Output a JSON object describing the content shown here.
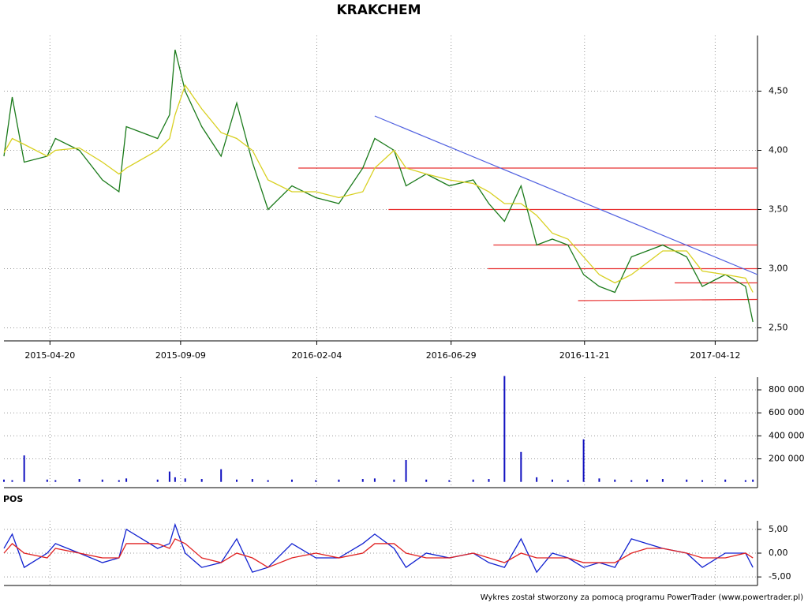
{
  "chart_data": [
    {
      "type": "line",
      "title": "KRAKCHEM",
      "x": [
        "2015-03-01",
        "2015-03-10",
        "2015-03-23",
        "2015-04-17",
        "2015-04-26",
        "2015-05-22",
        "2015-06-16",
        "2015-07-04",
        "2015-07-12",
        "2015-08-15",
        "2015-08-28",
        "2015-09-03",
        "2015-09-14",
        "2015-10-02",
        "2015-10-23",
        "2015-11-09",
        "2015-11-26",
        "2015-12-13",
        "2016-01-08",
        "2016-02-03",
        "2016-02-28",
        "2016-03-25",
        "2016-04-07",
        "2016-04-28",
        "2016-05-11",
        "2016-06-02",
        "2016-06-27",
        "2016-07-23",
        "2016-08-09",
        "2016-08-26",
        "2016-09-13",
        "2016-09-30",
        "2016-10-17",
        "2016-11-03",
        "2016-11-20",
        "2016-12-07",
        "2016-12-24",
        "2017-01-11",
        "2017-01-28",
        "2017-02-14",
        "2017-03-12",
        "2017-03-29",
        "2017-04-23",
        "2017-05-15",
        "2017-05-23"
      ],
      "series": [
        {
          "color": "#1a7a1a",
          "values": [
            3.95,
            4.45,
            3.9,
            3.95,
            4.1,
            4.0,
            3.75,
            3.65,
            4.2,
            4.1,
            4.3,
            4.85,
            4.5,
            4.2,
            3.95,
            4.4,
            3.9,
            3.5,
            3.7,
            3.6,
            3.55,
            3.85,
            4.1,
            4.0,
            3.7,
            3.8,
            3.7,
            3.75,
            3.55,
            3.4,
            3.7,
            3.2,
            3.25,
            3.2,
            2.95,
            2.85,
            2.8,
            3.1,
            3.15,
            3.2,
            3.1,
            2.85,
            2.95,
            2.85,
            2.55
          ]
        },
        {
          "color": "#d8d020",
          "values": [
            3.98,
            4.1,
            4.05,
            3.95,
            4.0,
            4.02,
            3.9,
            3.8,
            3.85,
            4.0,
            4.1,
            4.3,
            4.55,
            4.35,
            4.15,
            4.1,
            4.0,
            3.75,
            3.65,
            3.65,
            3.6,
            3.65,
            3.85,
            4.0,
            3.85,
            3.8,
            3.75,
            3.72,
            3.65,
            3.55,
            3.55,
            3.45,
            3.3,
            3.25,
            3.1,
            2.95,
            2.88,
            2.95,
            3.05,
            3.15,
            3.15,
            2.98,
            2.95,
            2.92,
            2.8
          ]
        }
      ],
      "levels": [
        {
          "x": [
            "2016-01-15",
            "2017-05-28"
          ],
          "y": [
            3.85,
            3.85
          ],
          "color": "#e83030"
        },
        {
          "x": [
            "2016-04-22",
            "2017-05-28"
          ],
          "y": [
            3.5,
            3.5
          ],
          "color": "#e83030"
        },
        {
          "x": [
            "2016-08-14",
            "2017-05-28"
          ],
          "y": [
            3.2,
            3.2
          ],
          "color": "#e83030"
        },
        {
          "x": [
            "2016-08-08",
            "2017-05-28"
          ],
          "y": [
            3.0,
            3.0
          ],
          "color": "#e83030"
        },
        {
          "x": [
            "2017-02-27",
            "2017-05-28"
          ],
          "y": [
            2.88,
            2.88
          ],
          "color": "#e83030"
        },
        {
          "x": [
            "2016-11-14",
            "2017-05-28"
          ],
          "y": [
            2.73,
            2.74
          ],
          "color": "#e83030"
        },
        {
          "x": [
            "2016-04-07",
            "2017-05-28"
          ],
          "y": [
            4.29,
            2.95
          ],
          "color": "#5060e0"
        }
      ],
      "xlim": [
        "2015-03-01",
        "2017-05-28"
      ],
      "xticks": [
        "2015-04-20",
        "2015-09-09",
        "2016-02-04",
        "2016-06-29",
        "2016-11-21",
        "2017-04-12"
      ],
      "ylim": [
        2.39,
        4.97
      ],
      "yticks": [
        {
          "value": 2.5,
          "label": "2,50"
        },
        {
          "value": 3.0,
          "label": "3,00"
        },
        {
          "value": 3.5,
          "label": "3,50"
        },
        {
          "value": 4.0,
          "label": "4,00"
        },
        {
          "value": 4.5,
          "label": "4,50"
        }
      ],
      "grid": true
    },
    {
      "type": "bar",
      "x": [
        "2015-03-01",
        "2015-03-10",
        "2015-03-23",
        "2015-04-17",
        "2015-04-26",
        "2015-05-22",
        "2015-06-16",
        "2015-07-04",
        "2015-07-12",
        "2015-08-15",
        "2015-08-28",
        "2015-09-03",
        "2015-09-14",
        "2015-10-02",
        "2015-10-23",
        "2015-11-09",
        "2015-11-26",
        "2015-12-13",
        "2016-01-08",
        "2016-02-03",
        "2016-02-28",
        "2016-03-25",
        "2016-04-07",
        "2016-04-28",
        "2016-05-11",
        "2016-06-02",
        "2016-06-27",
        "2016-07-23",
        "2016-08-09",
        "2016-08-26",
        "2016-09-13",
        "2016-09-30",
        "2016-10-17",
        "2016-11-03",
        "2016-11-20",
        "2016-12-07",
        "2016-12-24",
        "2017-01-11",
        "2017-01-28",
        "2017-02-14",
        "2017-03-12",
        "2017-03-29",
        "2017-04-23",
        "2017-05-15",
        "2017-05-23"
      ],
      "values": [
        20000,
        15000,
        230000,
        20000,
        15000,
        25000,
        20000,
        15000,
        30000,
        20000,
        90000,
        40000,
        30000,
        25000,
        110000,
        20000,
        25000,
        15000,
        20000,
        15000,
        20000,
        25000,
        30000,
        20000,
        190000,
        20000,
        15000,
        20000,
        25000,
        920000,
        260000,
        40000,
        20000,
        15000,
        370000,
        30000,
        20000,
        15000,
        20000,
        25000,
        20000,
        15000,
        20000,
        15000,
        20000
      ],
      "color": "#1010c0",
      "xlim": [
        "2015-03-01",
        "2017-05-28"
      ],
      "xticks": [
        "2015-04-20",
        "2015-09-09",
        "2016-02-04",
        "2016-06-29",
        "2016-11-21",
        "2017-04-12"
      ],
      "ylim": [
        -50000,
        910000
      ],
      "yticks": [
        {
          "value": 200000,
          "label": "200 000"
        },
        {
          "value": 400000,
          "label": "400 000"
        },
        {
          "value": 600000,
          "label": "600 000"
        },
        {
          "value": 800000,
          "label": "800 000"
        }
      ],
      "grid": true
    },
    {
      "type": "line",
      "title": "POS",
      "x": [
        "2015-03-01",
        "2015-03-10",
        "2015-03-23",
        "2015-04-17",
        "2015-04-26",
        "2015-05-22",
        "2015-06-16",
        "2015-07-04",
        "2015-07-12",
        "2015-08-15",
        "2015-08-28",
        "2015-09-03",
        "2015-09-14",
        "2015-10-02",
        "2015-10-23",
        "2015-11-09",
        "2015-11-26",
        "2015-12-13",
        "2016-01-08",
        "2016-02-03",
        "2016-02-28",
        "2016-03-25",
        "2016-04-07",
        "2016-04-28",
        "2016-05-11",
        "2016-06-02",
        "2016-06-27",
        "2016-07-23",
        "2016-08-09",
        "2016-08-26",
        "2016-09-13",
        "2016-09-30",
        "2016-10-17",
        "2016-11-03",
        "2016-11-20",
        "2016-12-07",
        "2016-12-24",
        "2017-01-11",
        "2017-01-28",
        "2017-02-14",
        "2017-03-12",
        "2017-03-29",
        "2017-04-23",
        "2017-05-15",
        "2017-05-23"
      ],
      "series": [
        {
          "color": "#1020d0",
          "values": [
            1,
            4,
            -3,
            0,
            2,
            0,
            -2,
            -1,
            5,
            1,
            2,
            6,
            0,
            -3,
            -2,
            3,
            -4,
            -3,
            2,
            -1,
            -1,
            2,
            4,
            1,
            -3,
            0,
            -1,
            0,
            -2,
            -3,
            3,
            -4,
            0,
            -1,
            -3,
            -2,
            -3,
            3,
            2,
            1,
            0,
            -3,
            0,
            0,
            -3
          ]
        },
        {
          "color": "#e02020",
          "values": [
            0,
            2,
            0,
            -1,
            1,
            0,
            -1,
            -1,
            2,
            2,
            1,
            3,
            2,
            -1,
            -2,
            0,
            -1,
            -3,
            -1,
            0,
            -1,
            0,
            2,
            2,
            0,
            -1,
            -1,
            0,
            -1,
            -2,
            0,
            -1,
            -1,
            -1,
            -2,
            -2,
            -2,
            0,
            1,
            1,
            0,
            -1,
            -1,
            0,
            -1
          ]
        }
      ],
      "xlim": [
        "2015-03-01",
        "2017-05-28"
      ],
      "xticks": [
        "2015-04-20",
        "2015-09-09",
        "2016-02-04",
        "2016-06-29",
        "2016-11-21",
        "2017-04-12"
      ],
      "ylim": [
        -6.8,
        6.8
      ],
      "yticks": [
        {
          "value": -5,
          "label": "-5,00"
        },
        {
          "value": 0,
          "label": "0,00"
        },
        {
          "value": 5,
          "label": "5,00"
        }
      ],
      "grid": true
    }
  ],
  "footer": "Wykres został stworzony za pomocą programu PowerTrader (www.powertrader.pl)"
}
